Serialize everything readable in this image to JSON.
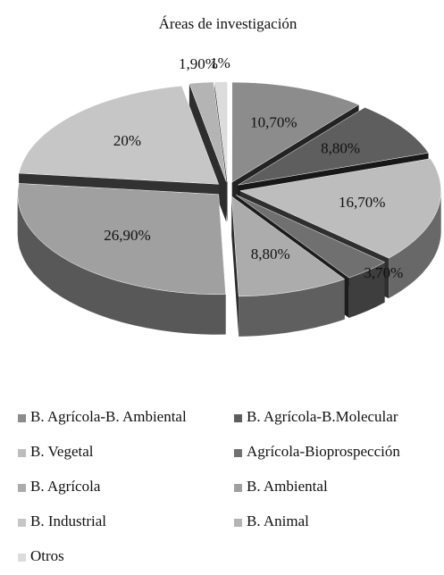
{
  "chart_data": {
    "type": "pie",
    "title": "Áreas de investigación",
    "categories": [
      "B. Agrícola-B. Ambiental",
      "B. Agrícola-B.Molecular",
      "B. Vegetal",
      "Agrícola-Bioprospección",
      "B. Agrícola",
      "B. Ambiental",
      "B. Industrial",
      "B. Animal",
      "Otros"
    ],
    "values": [
      10.7,
      8.8,
      16.7,
      3.7,
      8.8,
      26.9,
      20,
      1.9,
      1
    ],
    "value_labels": [
      "10,70%",
      "8,80%",
      "16,70%",
      "3,70%",
      "8,80%",
      "26,90%",
      "20%",
      "1,90%",
      "1%"
    ],
    "colors": [
      "#8c8c8c",
      "#5e5e5e",
      "#bdbdbd",
      "#707070",
      "#acacac",
      "#a0a0a0",
      "#c6c6c6",
      "#b4b4b4",
      "#dcdcdc"
    ],
    "legend": "bottom"
  }
}
